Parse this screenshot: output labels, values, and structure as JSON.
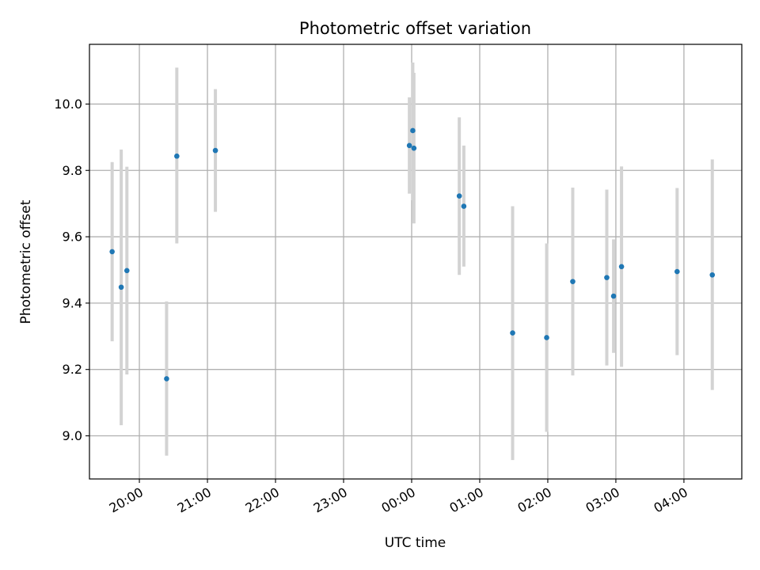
{
  "chart_data": {
    "type": "scatter",
    "title": "Photometric offset variation",
    "xlabel": "UTC time",
    "ylabel": "Photometric offset",
    "x_axis": "time",
    "x_tick_labels": [
      "20:00",
      "21:00",
      "22:00",
      "23:00",
      "00:00",
      "01:00",
      "02:00",
      "03:00",
      "04:00"
    ],
    "x_tick_times": [
      "20:00",
      "21:00",
      "22:00",
      "23:00",
      "00:00",
      "01:00",
      "02:00",
      "03:00",
      "04:00"
    ],
    "xlim": [
      "19:16",
      "04:51"
    ],
    "ylim": [
      8.87,
      10.18
    ],
    "y_ticks": [
      9.0,
      9.2,
      9.4,
      9.6,
      9.8,
      10.0
    ],
    "y_tick_labels": [
      "9.0",
      "9.2",
      "9.4",
      "9.6",
      "9.8",
      "10.0"
    ],
    "grid": true,
    "marker_color": "#1f77b4",
    "errorbar_color": "#d3d3d3",
    "series": [
      {
        "points": [
          {
            "t": "19:36",
            "y": 9.555,
            "lo": 9.285,
            "hi": 9.825
          },
          {
            "t": "19:44",
            "y": 9.448,
            "lo": 9.032,
            "hi": 9.863
          },
          {
            "t": "19:49",
            "y": 9.498,
            "lo": 9.185,
            "hi": 9.811
          },
          {
            "t": "20:24",
            "y": 9.172,
            "lo": 8.94,
            "hi": 9.405
          },
          {
            "t": "20:33",
            "y": 9.843,
            "lo": 9.58,
            "hi": 10.11
          },
          {
            "t": "21:07",
            "y": 9.86,
            "lo": 9.675,
            "hi": 10.045
          },
          {
            "t": "23:58",
            "y": 9.875,
            "lo": 9.73,
            "hi": 10.02
          },
          {
            "t": "00:01",
            "y": 9.92,
            "lo": 9.71,
            "hi": 10.125
          },
          {
            "t": "00:02",
            "y": 9.867,
            "lo": 9.64,
            "hi": 10.094
          },
          {
            "t": "00:42",
            "y": 9.723,
            "lo": 9.485,
            "hi": 9.96
          },
          {
            "t": "00:46",
            "y": 9.692,
            "lo": 9.51,
            "hi": 9.875
          },
          {
            "t": "01:29",
            "y": 9.31,
            "lo": 8.927,
            "hi": 9.692
          },
          {
            "t": "01:59",
            "y": 9.296,
            "lo": 9.012,
            "hi": 9.58
          },
          {
            "t": "02:22",
            "y": 9.465,
            "lo": 9.182,
            "hi": 9.748
          },
          {
            "t": "02:52",
            "y": 9.477,
            "lo": 9.212,
            "hi": 9.742
          },
          {
            "t": "02:58",
            "y": 9.421,
            "lo": 9.25,
            "hi": 9.592
          },
          {
            "t": "03:05",
            "y": 9.51,
            "lo": 9.208,
            "hi": 9.812
          },
          {
            "t": "03:54",
            "y": 9.495,
            "lo": 9.243,
            "hi": 9.747
          },
          {
            "t": "04:25",
            "y": 9.485,
            "lo": 9.138,
            "hi": 9.833
          }
        ]
      }
    ]
  }
}
